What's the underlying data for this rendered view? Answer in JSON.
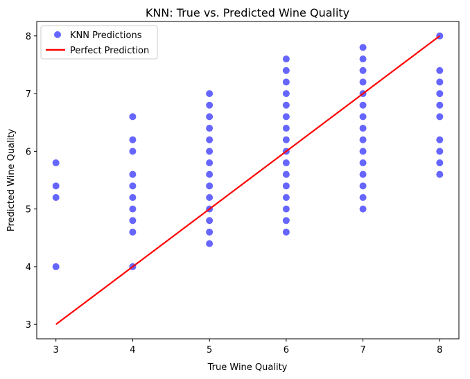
{
  "chart_data": {
    "type": "scatter",
    "title": "KNN: True vs. Predicted Wine Quality",
    "xlabel": "True Wine Quality",
    "ylabel": "Predicted Wine Quality",
    "xlim": [
      2.75,
      8.25
    ],
    "ylim": [
      2.75,
      8.25
    ],
    "xticks": [
      3,
      4,
      5,
      6,
      7,
      8
    ],
    "yticks": [
      3,
      4,
      5,
      6,
      7,
      8
    ],
    "grid": false,
    "legend_position": "top-left",
    "series": [
      {
        "name": "KNN Predictions",
        "kind": "scatter",
        "color": "#0000ff",
        "alpha": 0.6,
        "points": [
          [
            3,
            4.0
          ],
          [
            3,
            5.2
          ],
          [
            3,
            5.4
          ],
          [
            3,
            5.8
          ],
          [
            4,
            4.0
          ],
          [
            4,
            4.6
          ],
          [
            4,
            4.8
          ],
          [
            4,
            5.0
          ],
          [
            4,
            5.2
          ],
          [
            4,
            5.4
          ],
          [
            4,
            5.6
          ],
          [
            4,
            6.0
          ],
          [
            4,
            6.2
          ],
          [
            4,
            6.6
          ],
          [
            5,
            4.4
          ],
          [
            5,
            4.6
          ],
          [
            5,
            4.8
          ],
          [
            5,
            5.0
          ],
          [
            5,
            5.2
          ],
          [
            5,
            5.4
          ],
          [
            5,
            5.6
          ],
          [
            5,
            5.8
          ],
          [
            5,
            6.0
          ],
          [
            5,
            6.2
          ],
          [
            5,
            6.4
          ],
          [
            5,
            6.6
          ],
          [
            5,
            6.8
          ],
          [
            5,
            7.0
          ],
          [
            6,
            4.6
          ],
          [
            6,
            4.8
          ],
          [
            6,
            5.0
          ],
          [
            6,
            5.2
          ],
          [
            6,
            5.4
          ],
          [
            6,
            5.6
          ],
          [
            6,
            5.8
          ],
          [
            6,
            6.0
          ],
          [
            6,
            6.2
          ],
          [
            6,
            6.4
          ],
          [
            6,
            6.6
          ],
          [
            6,
            6.8
          ],
          [
            6,
            7.0
          ],
          [
            6,
            7.2
          ],
          [
            6,
            7.4
          ],
          [
            6,
            7.6
          ],
          [
            7,
            5.0
          ],
          [
            7,
            5.2
          ],
          [
            7,
            5.4
          ],
          [
            7,
            5.6
          ],
          [
            7,
            5.8
          ],
          [
            7,
            6.0
          ],
          [
            7,
            6.2
          ],
          [
            7,
            6.4
          ],
          [
            7,
            6.6
          ],
          [
            7,
            6.8
          ],
          [
            7,
            7.0
          ],
          [
            7,
            7.2
          ],
          [
            7,
            7.4
          ],
          [
            7,
            7.6
          ],
          [
            7,
            7.8
          ],
          [
            8,
            5.6
          ],
          [
            8,
            5.8
          ],
          [
            8,
            6.0
          ],
          [
            8,
            6.2
          ],
          [
            8,
            6.6
          ],
          [
            8,
            6.8
          ],
          [
            8,
            7.0
          ],
          [
            8,
            7.2
          ],
          [
            8,
            7.4
          ],
          [
            8,
            8.0
          ]
        ]
      },
      {
        "name": "Perfect Prediction",
        "kind": "line",
        "color": "#ff0000",
        "x": [
          3,
          8
        ],
        "y": [
          3,
          8
        ]
      }
    ]
  }
}
